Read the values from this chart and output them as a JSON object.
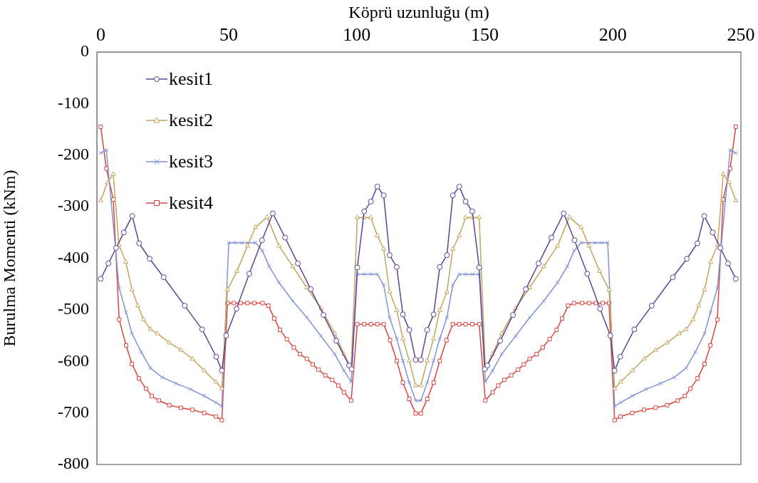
{
  "chart_data": {
    "type": "line",
    "xlabel": "Köprü uzunluğu (m)",
    "ylabel": "Burulma Momenti (kNm)",
    "xlim": [
      -1.5,
      250
    ],
    "xticks": [
      0,
      50,
      100,
      150,
      200,
      250
    ],
    "ylim": [
      -800,
      0
    ],
    "yticks": [
      0,
      -100,
      -200,
      -300,
      -400,
      -500,
      -600,
      -700,
      -800
    ],
    "grid": false,
    "legend": "top left",
    "line_style": "solid",
    "series": [
      {
        "name": "kesit1",
        "color": "#5b4596",
        "marker": "circle",
        "x": [
          0,
          3,
          6,
          9,
          12.3,
          15,
          19.1,
          24.6,
          32.8,
          39.6,
          45.1,
          47.3,
          49,
          53,
          58,
          63,
          67.2,
          72,
          77,
          82,
          87,
          92,
          97,
          98,
          100.2,
          102.9,
          105.5,
          108,
          110.5,
          112.8,
          115.6,
          118,
          120.5,
          123,
          125,
          127.5,
          130,
          132.4,
          135.2,
          137.5,
          140,
          142.5,
          145.1,
          147.8,
          150,
          151,
          156,
          161,
          166,
          171,
          176,
          180.8,
          185,
          190,
          195,
          199,
          200.7,
          202.9,
          208.4,
          215.2,
          223.4,
          228.9,
          233,
          235.7,
          239,
          242,
          245,
          248
        ],
        "values": [
          -440,
          -410,
          -380,
          -350,
          -318,
          -371,
          -401,
          -437,
          -492,
          -538,
          -591,
          -618,
          -550,
          -498,
          -430,
          -365,
          -313,
          -360,
          -410,
          -460,
          -510,
          -560,
          -608,
          -615,
          -418,
          -309,
          -290,
          -261,
          -278,
          -394,
          -417,
          -509,
          -539,
          -597,
          -597,
          -539,
          -509,
          -417,
          -394,
          -278,
          -261,
          -290,
          -309,
          -418,
          -615,
          -608,
          -560,
          -510,
          -460,
          -410,
          -360,
          -313,
          -365,
          -430,
          -498,
          -550,
          -618,
          -591,
          -538,
          -492,
          -437,
          -401,
          -371,
          -318,
          -350,
          -380,
          -410,
          -440
        ]
      },
      {
        "name": "kesit2",
        "color": "#c6a55c",
        "marker": "triangle",
        "x": [
          0,
          2.6,
          4.9,
          7.1,
          9.8,
          12.2,
          14.5,
          16.7,
          19.4,
          22.1,
          26.8,
          31.3,
          35.8,
          40.4,
          45,
          47.3,
          49.5,
          53.2,
          57.3,
          60.4,
          65,
          69.6,
          75,
          80.5,
          86,
          91.4,
          95,
          97.8,
          100.2,
          102.9,
          105.5,
          108,
          110.5,
          112.8,
          115.6,
          118,
          120.5,
          123,
          125,
          127.5,
          130,
          132.4,
          135.2,
          137.5,
          140,
          142.5,
          145.1,
          147.8,
          150.2,
          153,
          156.6,
          162,
          167.5,
          173,
          178.4,
          183,
          187.6,
          190.7,
          194.8,
          198.5,
          200.7,
          203,
          207.6,
          212.2,
          216.7,
          221.2,
          225.9,
          228.6,
          231.3,
          233.5,
          235.8,
          238.2,
          240.9,
          243.1,
          245.4,
          248
        ],
        "values": [
          -288,
          -253,
          -237,
          -374,
          -407,
          -461,
          -492,
          -519,
          -538,
          -546,
          -564,
          -578,
          -595,
          -618,
          -640,
          -653,
          -461,
          -425,
          -376,
          -340,
          -320,
          -376,
          -416,
          -457,
          -497,
          -546,
          -586,
          -613,
          -321,
          -321,
          -321,
          -356,
          -382,
          -465,
          -501,
          -556,
          -599,
          -647,
          -647,
          -599,
          -556,
          -501,
          -465,
          -382,
          -356,
          -321,
          -321,
          -321,
          -613,
          -586,
          -546,
          -497,
          -457,
          -416,
          -376,
          -320,
          -340,
          -376,
          -425,
          -461,
          -653,
          -640,
          -618,
          -595,
          -578,
          -564,
          -546,
          -538,
          -519,
          -492,
          -461,
          -407,
          -374,
          -237,
          -253,
          -288
        ]
      },
      {
        "name": "kesit3",
        "color": "#7f94d6",
        "marker": "cross",
        "x": [
          0,
          2.2,
          7.2,
          9.9,
          12.2,
          15.8,
          19.4,
          24,
          29.5,
          35,
          40.4,
          45,
          47.3,
          50,
          52.5,
          55,
          57.5,
          60.4,
          63.1,
          65.8,
          69.6,
          75,
          80.5,
          86,
          91.4,
          95,
          97.8,
          100.2,
          102.9,
          105.5,
          108,
          110.5,
          112.8,
          115.6,
          118,
          120.5,
          123,
          125,
          127.5,
          130,
          132.4,
          135.2,
          137.5,
          140,
          142.5,
          145.1,
          147.8,
          150.2,
          153,
          156.6,
          162,
          167.5,
          173,
          178.4,
          182.2,
          184.9,
          187.6,
          190.5,
          193,
          195.5,
          198,
          200.7,
          203,
          207.6,
          213,
          218.5,
          224,
          228.6,
          232.2,
          235.8,
          238.1,
          240.8,
          245.8,
          248
        ],
        "values": [
          -196,
          -190,
          -458,
          -505,
          -546,
          -582,
          -613,
          -631,
          -643,
          -654,
          -667,
          -680,
          -687,
          -370,
          -370,
          -370,
          -370,
          -370,
          -385,
          -416,
          -447,
          -483,
          -515,
          -551,
          -586,
          -618,
          -640,
          -431,
          -431,
          -431,
          -431,
          -452,
          -515,
          -556,
          -599,
          -641,
          -676,
          -676,
          -641,
          -599,
          -556,
          -515,
          -452,
          -431,
          -431,
          -431,
          -431,
          -640,
          -618,
          -586,
          -551,
          -515,
          -483,
          -447,
          -416,
          -385,
          -370,
          -370,
          -370,
          -370,
          -370,
          -687,
          -680,
          -667,
          -654,
          -643,
          -631,
          -613,
          -582,
          -546,
          -505,
          -458,
          -190,
          -196
        ]
      },
      {
        "name": "kesit4",
        "color": "#d8463f",
        "marker": "square",
        "x": [
          0,
          2.2,
          4.9,
          7.2,
          9.9,
          12.2,
          14.9,
          17.7,
          19.9,
          22.7,
          26.8,
          31.3,
          35.8,
          40.4,
          45,
          47.3,
          49.5,
          52,
          54.6,
          57.3,
          60,
          63.2,
          65.5,
          67.8,
          70,
          72.7,
          75.4,
          77.8,
          80.5,
          82.8,
          85,
          87.7,
          90.4,
          92.8,
          95,
          97.8,
          100.2,
          102.9,
          105.5,
          108,
          110.5,
          113,
          115.6,
          118,
          120.5,
          123,
          125,
          127.5,
          130,
          132.4,
          135,
          137.5,
          140,
          142.5,
          145.1,
          147.8,
          150.2,
          153,
          155.2,
          157.6,
          160.3,
          163,
          165.2,
          167.5,
          170.2,
          172.6,
          175.3,
          178,
          180.2,
          182.5,
          184.8,
          188,
          190.7,
          193.4,
          196,
          198.5,
          200.7,
          203,
          207.6,
          212.2,
          216.7,
          221.2,
          225.3,
          228.1,
          230.3,
          233.1,
          235.8,
          238.1,
          240.8,
          243.1,
          245.8,
          248
        ],
        "values": [
          -145,
          -226,
          -286,
          -519,
          -569,
          -605,
          -633,
          -653,
          -667,
          -676,
          -685,
          -690,
          -694,
          -700,
          -707,
          -714,
          -487,
          -487,
          -487,
          -487,
          -487,
          -487,
          -492,
          -517,
          -539,
          -557,
          -573,
          -586,
          -595,
          -606,
          -616,
          -627,
          -636,
          -647,
          -660,
          -676,
          -528,
          -528,
          -528,
          -528,
          -528,
          -559,
          -599,
          -641,
          -673,
          -701,
          -701,
          -673,
          -641,
          -599,
          -559,
          -528,
          -528,
          -528,
          -528,
          -528,
          -676,
          -660,
          -647,
          -636,
          -627,
          -616,
          -606,
          -595,
          -586,
          -573,
          -557,
          -539,
          -517,
          -492,
          -487,
          -487,
          -487,
          -487,
          -487,
          -487,
          -714,
          -707,
          -700,
          -694,
          -690,
          -685,
          -676,
          -667,
          -653,
          -633,
          -605,
          -569,
          -519,
          -286,
          -226,
          -145
        ]
      }
    ]
  }
}
